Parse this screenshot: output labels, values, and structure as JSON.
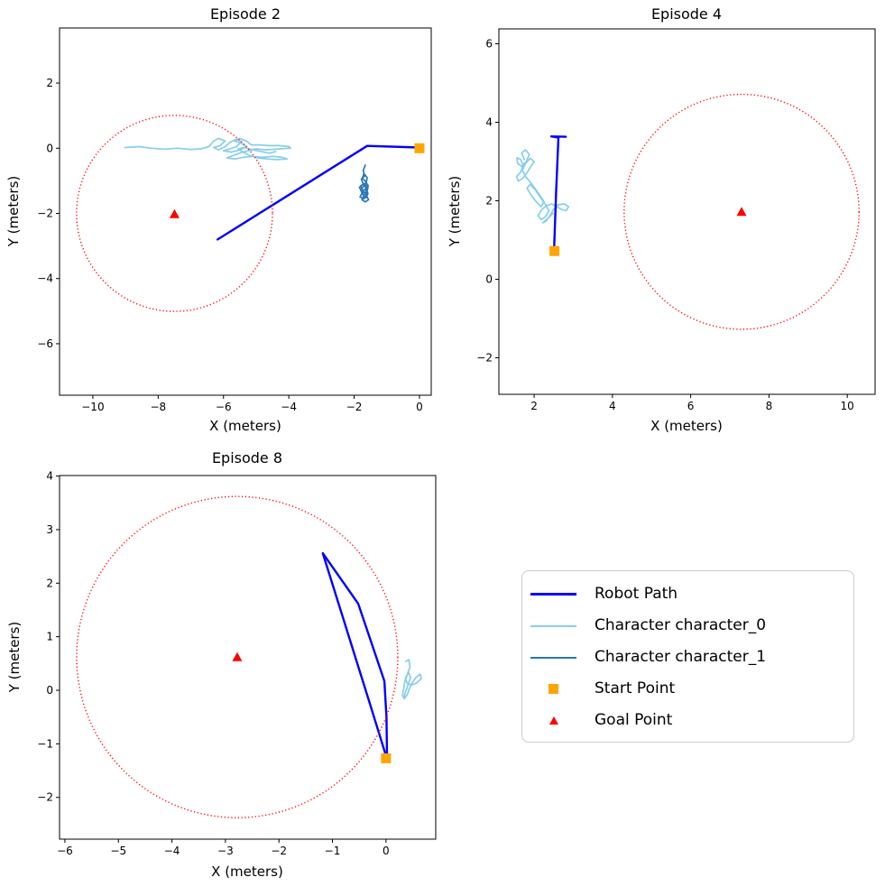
{
  "figure": {
    "background": "#ffffff",
    "colors": {
      "robot": "#0000ff",
      "character_0": "#87ceeb",
      "character_1": "#2878b5",
      "start": "#ffa500",
      "goal": "#ff0000",
      "goal_region": "#ff0000"
    }
  },
  "legend": {
    "items": [
      {
        "name": "robot-path",
        "label": "Robot Path",
        "marker": "line",
        "color": "#0000ff",
        "thickness": 3
      },
      {
        "name": "character-0",
        "label": "Character character_0",
        "marker": "line",
        "color": "#87ceeb",
        "thickness": 2
      },
      {
        "name": "character-1",
        "label": "Character character_1",
        "marker": "line",
        "color": "#2878b5",
        "thickness": 2
      },
      {
        "name": "start-point",
        "label": "Start Point",
        "marker": "square",
        "color": "#ffa500"
      },
      {
        "name": "goal-point",
        "label": "Goal Point",
        "marker": "triangle",
        "color": "#ff0000"
      }
    ]
  },
  "chart_data": [
    {
      "type": "line",
      "title": "Episode 2",
      "xlabel": "X (meters)",
      "ylabel": "Y (meters)",
      "xlim": [
        -11.02,
        0.36
      ],
      "ylim": [
        -7.58,
        3.69
      ],
      "xticks": [
        -10,
        -8,
        -6,
        -4,
        -2,
        0
      ],
      "yticks": [
        -6,
        -4,
        -2,
        0,
        2
      ],
      "grid": false,
      "goal_region_circle": {
        "cx": -7.5,
        "cy": -2.0,
        "r": 3.0
      },
      "start_point": [
        0.0,
        0.0
      ],
      "goal_point": [
        -7.5,
        -2.02
      ],
      "series": [
        {
          "name": "Character character_0",
          "color": "#87ceeb",
          "width": 1.7,
          "points": [
            [
              -9.02,
              0.02
            ],
            [
              -8.6,
              0.05
            ],
            [
              -8.2,
              0.0
            ],
            [
              -7.8,
              -0.03
            ],
            [
              -7.4,
              0.0
            ],
            [
              -7.0,
              -0.04
            ],
            [
              -6.7,
              -0.02
            ],
            [
              -6.45,
              0.05
            ],
            [
              -6.3,
              0.22
            ],
            [
              -6.15,
              0.3
            ],
            [
              -5.95,
              0.22
            ],
            [
              -6.1,
              0.08
            ],
            [
              -6.3,
              0.02
            ],
            [
              -6.15,
              -0.05
            ],
            [
              -5.95,
              0.05
            ],
            [
              -5.8,
              0.18
            ],
            [
              -5.6,
              0.28
            ],
            [
              -5.45,
              0.2
            ],
            [
              -5.6,
              0.05
            ],
            [
              -5.8,
              -0.02
            ],
            [
              -6.0,
              -0.08
            ],
            [
              -5.75,
              -0.12
            ],
            [
              -5.5,
              -0.05
            ],
            [
              -5.3,
              0.05
            ],
            [
              -5.45,
              0.15
            ],
            [
              -5.65,
              0.22
            ],
            [
              -5.5,
              0.3
            ],
            [
              -5.3,
              0.22
            ],
            [
              -5.15,
              0.1
            ],
            [
              -4.9,
              0.1
            ],
            [
              -4.6,
              0.08
            ],
            [
              -4.3,
              0.08
            ],
            [
              -4.0,
              0.05
            ],
            [
              -3.95,
              0.0
            ],
            [
              -4.3,
              -0.02
            ],
            [
              -4.7,
              -0.05
            ],
            [
              -5.0,
              -0.02
            ],
            [
              -5.25,
              -0.08
            ],
            [
              -5.5,
              -0.15
            ],
            [
              -5.7,
              -0.22
            ],
            [
              -5.9,
              -0.3
            ],
            [
              -5.65,
              -0.33
            ],
            [
              -5.4,
              -0.28
            ],
            [
              -5.1,
              -0.25
            ],
            [
              -4.8,
              -0.28
            ],
            [
              -4.5,
              -0.25
            ],
            [
              -4.2,
              -0.28
            ],
            [
              -4.05,
              -0.33
            ],
            [
              -4.35,
              -0.35
            ],
            [
              -4.65,
              -0.33
            ],
            [
              -4.95,
              -0.3
            ],
            [
              -5.2,
              -0.22
            ],
            [
              -5.4,
              -0.12
            ],
            [
              -5.55,
              -0.02
            ],
            [
              -5.35,
              0.02
            ],
            [
              -5.1,
              -0.05
            ],
            [
              -4.85,
              -0.1
            ],
            [
              -4.6,
              -0.15
            ],
            [
              -4.4,
              -0.1
            ]
          ]
        },
        {
          "name": "Character character_1",
          "color": "#2878b5",
          "width": 1.7,
          "points": [
            [
              -1.66,
              -0.52
            ],
            [
              -1.72,
              -0.68
            ],
            [
              -1.68,
              -0.85
            ],
            [
              -1.78,
              -0.95
            ],
            [
              -1.72,
              -1.1
            ],
            [
              -1.84,
              -1.2
            ],
            [
              -1.76,
              -1.35
            ],
            [
              -1.66,
              -1.25
            ],
            [
              -1.6,
              -1.42
            ],
            [
              -1.7,
              -1.55
            ],
            [
              -1.82,
              -1.5
            ],
            [
              -1.76,
              -1.38
            ],
            [
              -1.62,
              -1.35
            ],
            [
              -1.58,
              -1.22
            ],
            [
              -1.68,
              -1.08
            ],
            [
              -1.8,
              -1.15
            ],
            [
              -1.73,
              -1.3
            ],
            [
              -1.62,
              -1.45
            ],
            [
              -1.56,
              -1.58
            ],
            [
              -1.66,
              -1.65
            ],
            [
              -1.76,
              -1.58
            ],
            [
              -1.7,
              -1.45
            ],
            [
              -1.6,
              -1.3
            ],
            [
              -1.57,
              -1.15
            ],
            [
              -1.65,
              -1.02
            ],
            [
              -1.75,
              -0.92
            ],
            [
              -1.7,
              -0.78
            ],
            [
              -1.6,
              -0.9
            ],
            [
              -1.63,
              -1.05
            ],
            [
              -1.72,
              -1.18
            ],
            [
              -1.8,
              -1.28
            ],
            [
              -1.74,
              -1.42
            ],
            [
              -1.64,
              -1.52
            ],
            [
              -1.58,
              -1.4
            ],
            [
              -1.62,
              -1.25
            ],
            [
              -1.7,
              -1.12
            ]
          ]
        },
        {
          "name": "Robot Path",
          "color": "#0000ff",
          "width": 2.4,
          "points": [
            [
              0.02,
              0.02
            ],
            [
              -1.6,
              0.07
            ],
            [
              -6.18,
              -2.8
            ]
          ]
        }
      ]
    },
    {
      "type": "line",
      "title": "Episode 4",
      "xlabel": "X (meters)",
      "ylabel": "Y (meters)",
      "xlim": [
        1.1,
        10.71
      ],
      "ylim": [
        -2.93,
        6.38
      ],
      "xticks": [
        2,
        4,
        6,
        8,
        10
      ],
      "yticks": [
        -2,
        0,
        2,
        4,
        6
      ],
      "grid": false,
      "goal_region_circle": {
        "cx": 7.3,
        "cy": 1.72,
        "r": 3.0
      },
      "start_point": [
        2.52,
        0.72
      ],
      "goal_point": [
        7.3,
        1.72
      ],
      "series": [
        {
          "name": "Character character_0",
          "color": "#87ceeb",
          "width": 1.7,
          "points": [
            [
              1.75,
              3.05
            ],
            [
              1.68,
              3.22
            ],
            [
              1.78,
              3.3
            ],
            [
              1.88,
              3.18
            ],
            [
              1.8,
              3.0
            ],
            [
              1.68,
              2.88
            ],
            [
              1.58,
              2.95
            ],
            [
              1.56,
              3.1
            ],
            [
              1.66,
              3.05
            ],
            [
              1.72,
              2.9
            ],
            [
              1.65,
              2.72
            ],
            [
              1.55,
              2.62
            ],
            [
              1.6,
              2.5
            ],
            [
              1.72,
              2.58
            ],
            [
              1.82,
              2.72
            ],
            [
              1.92,
              2.88
            ],
            [
              2.0,
              3.0
            ],
            [
              1.9,
              3.08
            ],
            [
              1.78,
              2.95
            ],
            [
              1.7,
              2.78
            ],
            [
              1.78,
              2.62
            ],
            [
              1.9,
              2.48
            ],
            [
              2.02,
              2.32
            ],
            [
              2.14,
              2.15
            ],
            [
              2.25,
              1.98
            ],
            [
              2.18,
              1.85
            ],
            [
              2.05,
              1.98
            ],
            [
              1.92,
              2.15
            ],
            [
              1.82,
              2.32
            ],
            [
              1.9,
              2.42
            ],
            [
              2.03,
              2.28
            ],
            [
              2.15,
              2.1
            ],
            [
              2.28,
              1.92
            ],
            [
              2.38,
              1.75
            ],
            [
              2.3,
              1.6
            ],
            [
              2.18,
              1.52
            ],
            [
              2.1,
              1.62
            ],
            [
              2.2,
              1.78
            ],
            [
              2.32,
              1.88
            ],
            [
              2.45,
              1.92
            ],
            [
              2.58,
              1.85
            ],
            [
              2.7,
              1.78
            ],
            [
              2.82,
              1.75
            ],
            [
              2.88,
              1.85
            ],
            [
              2.78,
              1.92
            ],
            [
              2.62,
              1.9
            ],
            [
              2.5,
              1.78
            ],
            [
              2.4,
              1.62
            ],
            [
              2.3,
              1.48
            ],
            [
              2.22,
              1.44
            ],
            [
              2.35,
              1.55
            ],
            [
              2.48,
              1.68
            ]
          ]
        },
        {
          "name": "Robot Path",
          "color": "#0000ff",
          "width": 2.4,
          "points": [
            [
              2.51,
              0.76
            ],
            [
              2.56,
              2.2
            ],
            [
              2.62,
              3.61
            ],
            [
              2.44,
              3.64
            ],
            [
              2.81,
              3.63
            ]
          ]
        }
      ]
    },
    {
      "type": "line",
      "title": "Episode 8",
      "xlabel": "X (meters)",
      "ylabel": "Y (meters)",
      "xlim": [
        -6.1,
        0.93
      ],
      "ylim": [
        -2.78,
        4.01
      ],
      "xticks": [
        -6,
        -5,
        -4,
        -3,
        -2,
        -1,
        0
      ],
      "yticks": [
        -2,
        -1,
        0,
        1,
        2,
        3,
        4
      ],
      "grid": false,
      "goal_region_circle": {
        "cx": -2.78,
        "cy": 0.62,
        "r": 3.0
      },
      "start_point": [
        0.0,
        -1.27
      ],
      "goal_point": [
        -2.78,
        0.62
      ],
      "series": [
        {
          "name": "Character character_0",
          "color": "#87ceeb",
          "width": 1.7,
          "points": [
            [
              0.37,
              0.54
            ],
            [
              0.43,
              0.57
            ],
            [
              0.45,
              0.44
            ],
            [
              0.4,
              0.3
            ],
            [
              0.35,
              0.16
            ],
            [
              0.33,
              0.02
            ],
            [
              0.31,
              -0.1
            ],
            [
              0.34,
              -0.16
            ],
            [
              0.4,
              -0.08
            ],
            [
              0.44,
              0.04
            ],
            [
              0.49,
              0.14
            ],
            [
              0.56,
              0.24
            ],
            [
              0.64,
              0.3
            ],
            [
              0.66,
              0.22
            ],
            [
              0.58,
              0.14
            ],
            [
              0.48,
              0.1
            ],
            [
              0.4,
              0.12
            ],
            [
              0.36,
              0.22
            ],
            [
              0.42,
              0.34
            ],
            [
              0.46,
              0.24
            ],
            [
              0.41,
              0.1
            ],
            [
              0.37,
              -0.02
            ],
            [
              0.34,
              -0.12
            ]
          ]
        },
        {
          "name": "Robot Path",
          "color": "#0000ff",
          "width": 2.4,
          "points": [
            [
              0.0,
              -1.22
            ],
            [
              -0.3,
              -0.25
            ],
            [
              -1.18,
              2.56
            ],
            [
              -0.52,
              1.62
            ],
            [
              -0.03,
              0.17
            ],
            [
              0.01,
              -0.5
            ],
            [
              0.02,
              -1.22
            ]
          ]
        }
      ]
    }
  ]
}
